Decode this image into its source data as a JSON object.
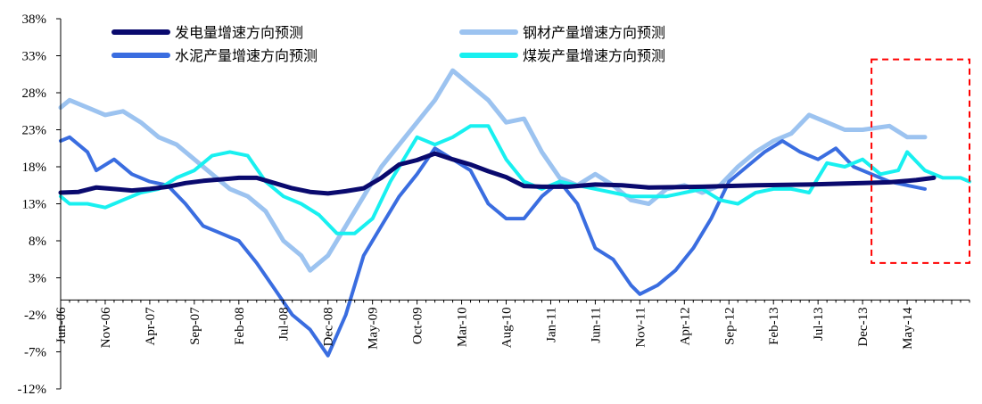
{
  "chart_data": {
    "type": "line",
    "title": "",
    "xlabel": "",
    "ylabel": "",
    "ylim": [
      -12,
      38
    ],
    "yticks": [
      "38%",
      "33%",
      "28%",
      "23%",
      "18%",
      "13%",
      "8%",
      "3%",
      "-2%",
      "-7%",
      "-12%"
    ],
    "ytick_values": [
      38,
      33,
      28,
      23,
      18,
      13,
      8,
      3,
      -2,
      -7,
      -12
    ],
    "x_range": [
      "2006-06",
      "2014-12"
    ],
    "x_ticks": [
      "Jun-06",
      "Nov-06",
      "Apr-07",
      "Sep-07",
      "Feb-08",
      "Jul-08",
      "Dec-08",
      "May-09",
      "Oct-09",
      "Mar-10",
      "Aug-10",
      "Jan-11",
      "Jun-11",
      "Nov-11",
      "Apr-12",
      "Sep-12",
      "Feb-13",
      "Jul-13",
      "Dec-13",
      "May-14"
    ],
    "grid": false,
    "legend_position": "top",
    "highlight_box": {
      "x_start": "2014-01",
      "x_end": "2014-12",
      "y_top": 32.5,
      "y_bottom": 5,
      "color": "#FF0000",
      "style": "dashed"
    },
    "series": [
      {
        "name": "发电量增速方向预测",
        "color": "#0A0A6E",
        "points": [
          [
            "2006-06",
            14.5
          ],
          [
            "2006-08",
            14.6
          ],
          [
            "2006-10",
            15.2
          ],
          [
            "2006-12",
            15.0
          ],
          [
            "2007-02",
            14.8
          ],
          [
            "2007-04",
            15.0
          ],
          [
            "2007-06",
            15.3
          ],
          [
            "2007-08",
            15.8
          ],
          [
            "2007-10",
            16.1
          ],
          [
            "2007-12",
            16.3
          ],
          [
            "2008-02",
            16.5
          ],
          [
            "2008-04",
            16.5
          ],
          [
            "2008-06",
            15.8
          ],
          [
            "2008-08",
            15.1
          ],
          [
            "2008-10",
            14.6
          ],
          [
            "2008-12",
            14.4
          ],
          [
            "2009-02",
            14.7
          ],
          [
            "2009-04",
            15.1
          ],
          [
            "2009-06",
            16.5
          ],
          [
            "2009-08",
            18.3
          ],
          [
            "2009-10",
            18.9
          ],
          [
            "2009-12",
            19.8
          ],
          [
            "2010-02",
            19.0
          ],
          [
            "2010-04",
            18.3
          ],
          [
            "2010-06",
            17.4
          ],
          [
            "2010-08",
            16.6
          ],
          [
            "2010-10",
            15.4
          ],
          [
            "2010-12",
            15.3
          ],
          [
            "2011-03",
            15.3
          ],
          [
            "2011-06",
            15.6
          ],
          [
            "2011-09",
            15.5
          ],
          [
            "2011-12",
            15.2
          ],
          [
            "2012-06",
            15.3
          ],
          [
            "2012-12",
            15.5
          ],
          [
            "2013-06",
            15.6
          ],
          [
            "2013-12",
            15.8
          ],
          [
            "2014-03",
            15.9
          ],
          [
            "2014-06",
            16.2
          ],
          [
            "2014-08",
            16.5
          ]
        ]
      },
      {
        "name": "钢材产量增速方向预测",
        "color": "#9CC3F0",
        "points": [
          [
            "2006-06",
            26.0
          ],
          [
            "2006-07",
            27.0
          ],
          [
            "2006-09",
            26.0
          ],
          [
            "2006-11",
            25.0
          ],
          [
            "2007-01",
            25.5
          ],
          [
            "2007-03",
            24.0
          ],
          [
            "2007-05",
            22.0
          ],
          [
            "2007-07",
            21.0
          ],
          [
            "2007-09",
            19.0
          ],
          [
            "2007-11",
            17.0
          ],
          [
            "2008-01",
            15.0
          ],
          [
            "2008-03",
            14.0
          ],
          [
            "2008-05",
            12.0
          ],
          [
            "2008-07",
            8.0
          ],
          [
            "2008-09",
            6.0
          ],
          [
            "2008-10",
            4.0
          ],
          [
            "2008-12",
            6.0
          ],
          [
            "2009-02",
            10.0
          ],
          [
            "2009-04",
            14.0
          ],
          [
            "2009-06",
            18.0
          ],
          [
            "2009-08",
            21.0
          ],
          [
            "2009-10",
            24.0
          ],
          [
            "2009-12",
            27.0
          ],
          [
            "2010-02",
            31.0
          ],
          [
            "2010-04",
            29.0
          ],
          [
            "2010-06",
            27.0
          ],
          [
            "2010-08",
            24.0
          ],
          [
            "2010-10",
            24.5
          ],
          [
            "2010-12",
            20.0
          ],
          [
            "2011-02",
            16.5
          ],
          [
            "2011-04",
            15.5
          ],
          [
            "2011-06",
            17.0
          ],
          [
            "2011-08",
            15.5
          ],
          [
            "2011-10",
            13.5
          ],
          [
            "2011-12",
            13.0
          ],
          [
            "2012-02",
            15.0
          ],
          [
            "2012-04",
            15.5
          ],
          [
            "2012-06",
            14.5
          ],
          [
            "2012-08",
            15.5
          ],
          [
            "2012-10",
            18.0
          ],
          [
            "2012-12",
            20.0
          ],
          [
            "2013-02",
            21.5
          ],
          [
            "2013-04",
            22.5
          ],
          [
            "2013-06",
            25.0
          ],
          [
            "2013-08",
            24.0
          ],
          [
            "2013-10",
            23.0
          ],
          [
            "2013-12",
            23.0
          ],
          [
            "2014-03",
            23.5
          ],
          [
            "2014-05",
            22.0
          ],
          [
            "2014-07",
            22.0
          ]
        ]
      },
      {
        "name": "水泥产量增速方向预测",
        "color": "#3A6DE0",
        "points": [
          [
            "2006-06",
            21.5
          ],
          [
            "2006-07",
            22.0
          ],
          [
            "2006-09",
            20.0
          ],
          [
            "2006-10",
            17.5
          ],
          [
            "2006-12",
            19.0
          ],
          [
            "2007-02",
            17.0
          ],
          [
            "2007-04",
            16.0
          ],
          [
            "2007-06",
            15.5
          ],
          [
            "2007-08",
            13.0
          ],
          [
            "2007-10",
            10.0
          ],
          [
            "2007-12",
            9.0
          ],
          [
            "2008-02",
            8.0
          ],
          [
            "2008-04",
            5.0
          ],
          [
            "2008-06",
            1.5
          ],
          [
            "2008-08",
            -2.0
          ],
          [
            "2008-10",
            -4.0
          ],
          [
            "2008-12",
            -7.5
          ],
          [
            "2009-02",
            -2.0
          ],
          [
            "2009-04",
            6.0
          ],
          [
            "2009-06",
            10.0
          ],
          [
            "2009-08",
            14.0
          ],
          [
            "2009-10",
            17.0
          ],
          [
            "2009-12",
            20.5
          ],
          [
            "2010-02",
            19.0
          ],
          [
            "2010-04",
            17.5
          ],
          [
            "2010-06",
            13.0
          ],
          [
            "2010-08",
            11.0
          ],
          [
            "2010-10",
            11.0
          ],
          [
            "2010-12",
            14.0
          ],
          [
            "2011-02",
            16.0
          ],
          [
            "2011-04",
            13.0
          ],
          [
            "2011-06",
            7.0
          ],
          [
            "2011-08",
            5.5
          ],
          [
            "2011-10",
            2.0
          ],
          [
            "2011-11",
            0.8
          ],
          [
            "2012-01",
            2.0
          ],
          [
            "2012-03",
            4.0
          ],
          [
            "2012-05",
            7.0
          ],
          [
            "2012-07",
            11.0
          ],
          [
            "2012-09",
            16.0
          ],
          [
            "2012-11",
            18.0
          ],
          [
            "2013-01",
            20.0
          ],
          [
            "2013-03",
            21.5
          ],
          [
            "2013-05",
            20.0
          ],
          [
            "2013-07",
            19.0
          ],
          [
            "2013-09",
            20.5
          ],
          [
            "2013-11",
            18.0
          ],
          [
            "2014-01",
            17.0
          ],
          [
            "2014-03",
            16.0
          ],
          [
            "2014-05",
            15.5
          ],
          [
            "2014-07",
            15.0
          ]
        ]
      },
      {
        "name": "煤炭产量增速方向预测",
        "color": "#18F0F0",
        "points": [
          [
            "2006-06",
            14.0
          ],
          [
            "2006-07",
            13.0
          ],
          [
            "2006-09",
            13.0
          ],
          [
            "2006-11",
            12.5
          ],
          [
            "2007-01",
            13.5
          ],
          [
            "2007-03",
            14.5
          ],
          [
            "2007-05",
            15.0
          ],
          [
            "2007-07",
            16.5
          ],
          [
            "2007-09",
            17.5
          ],
          [
            "2007-11",
            19.5
          ],
          [
            "2008-01",
            20.0
          ],
          [
            "2008-03",
            19.5
          ],
          [
            "2008-05",
            16.0
          ],
          [
            "2008-07",
            14.0
          ],
          [
            "2008-09",
            13.0
          ],
          [
            "2008-11",
            11.5
          ],
          [
            "2009-01",
            9.0
          ],
          [
            "2009-03",
            9.0
          ],
          [
            "2009-05",
            11.0
          ],
          [
            "2009-07",
            16.0
          ],
          [
            "2009-09",
            20.0
          ],
          [
            "2009-10",
            22.0
          ],
          [
            "2009-12",
            21.0
          ],
          [
            "2010-02",
            22.0
          ],
          [
            "2010-04",
            23.5
          ],
          [
            "2010-06",
            23.5
          ],
          [
            "2010-08",
            19.0
          ],
          [
            "2010-10",
            16.0
          ],
          [
            "2010-12",
            15.0
          ],
          [
            "2011-02",
            16.0
          ],
          [
            "2011-04",
            15.5
          ],
          [
            "2011-06",
            15.0
          ],
          [
            "2011-08",
            14.5
          ],
          [
            "2011-10",
            14.0
          ],
          [
            "2011-12",
            14.0
          ],
          [
            "2012-02",
            14.0
          ],
          [
            "2012-04",
            14.5
          ],
          [
            "2012-06",
            15.0
          ],
          [
            "2012-08",
            13.5
          ],
          [
            "2012-10",
            13.0
          ],
          [
            "2012-12",
            14.5
          ],
          [
            "2013-02",
            15.0
          ],
          [
            "2013-04",
            15.0
          ],
          [
            "2013-06",
            14.5
          ],
          [
            "2013-08",
            18.5
          ],
          [
            "2013-10",
            18.0
          ],
          [
            "2013-12",
            19.0
          ],
          [
            "2014-02",
            17.0
          ],
          [
            "2014-04",
            17.5
          ],
          [
            "2014-05",
            20.0
          ],
          [
            "2014-07",
            17.5
          ],
          [
            "2014-09",
            16.5
          ],
          [
            "2014-11",
            16.5
          ],
          [
            "2014-12",
            16.0
          ]
        ]
      }
    ]
  }
}
